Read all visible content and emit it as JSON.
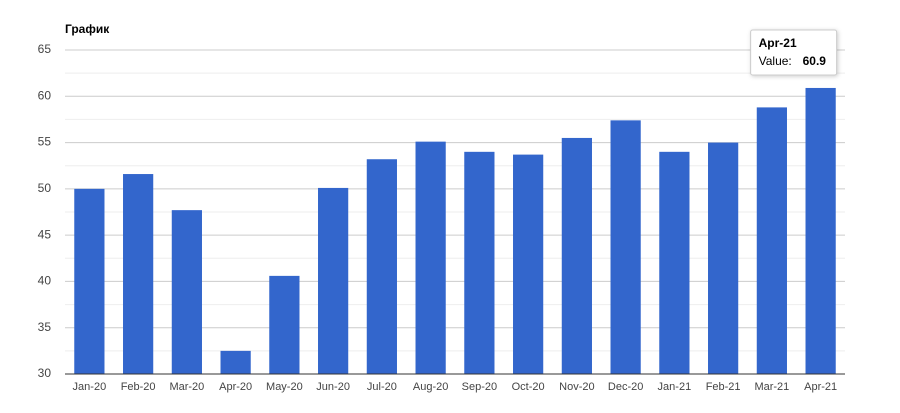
{
  "chart_data": {
    "type": "bar",
    "title": "График",
    "categories": [
      "Jan-20",
      "Feb-20",
      "Mar-20",
      "Apr-20",
      "May-20",
      "Jun-20",
      "Jul-20",
      "Aug-20",
      "Sep-20",
      "Oct-20",
      "Nov-20",
      "Dec-20",
      "Jan-21",
      "Feb-21",
      "Mar-21",
      "Apr-21"
    ],
    "values": [
      50.0,
      51.6,
      47.7,
      32.5,
      40.6,
      50.1,
      53.2,
      55.1,
      54.0,
      53.7,
      55.5,
      57.4,
      54.0,
      55.0,
      58.8,
      60.9
    ],
    "color": "#3366cc",
    "ylim": [
      30,
      65
    ],
    "yticks": [
      30,
      35,
      40,
      45,
      50,
      55,
      60,
      65
    ],
    "grid": true,
    "tooltip": {
      "index": 15,
      "label": "Value:"
    }
  }
}
